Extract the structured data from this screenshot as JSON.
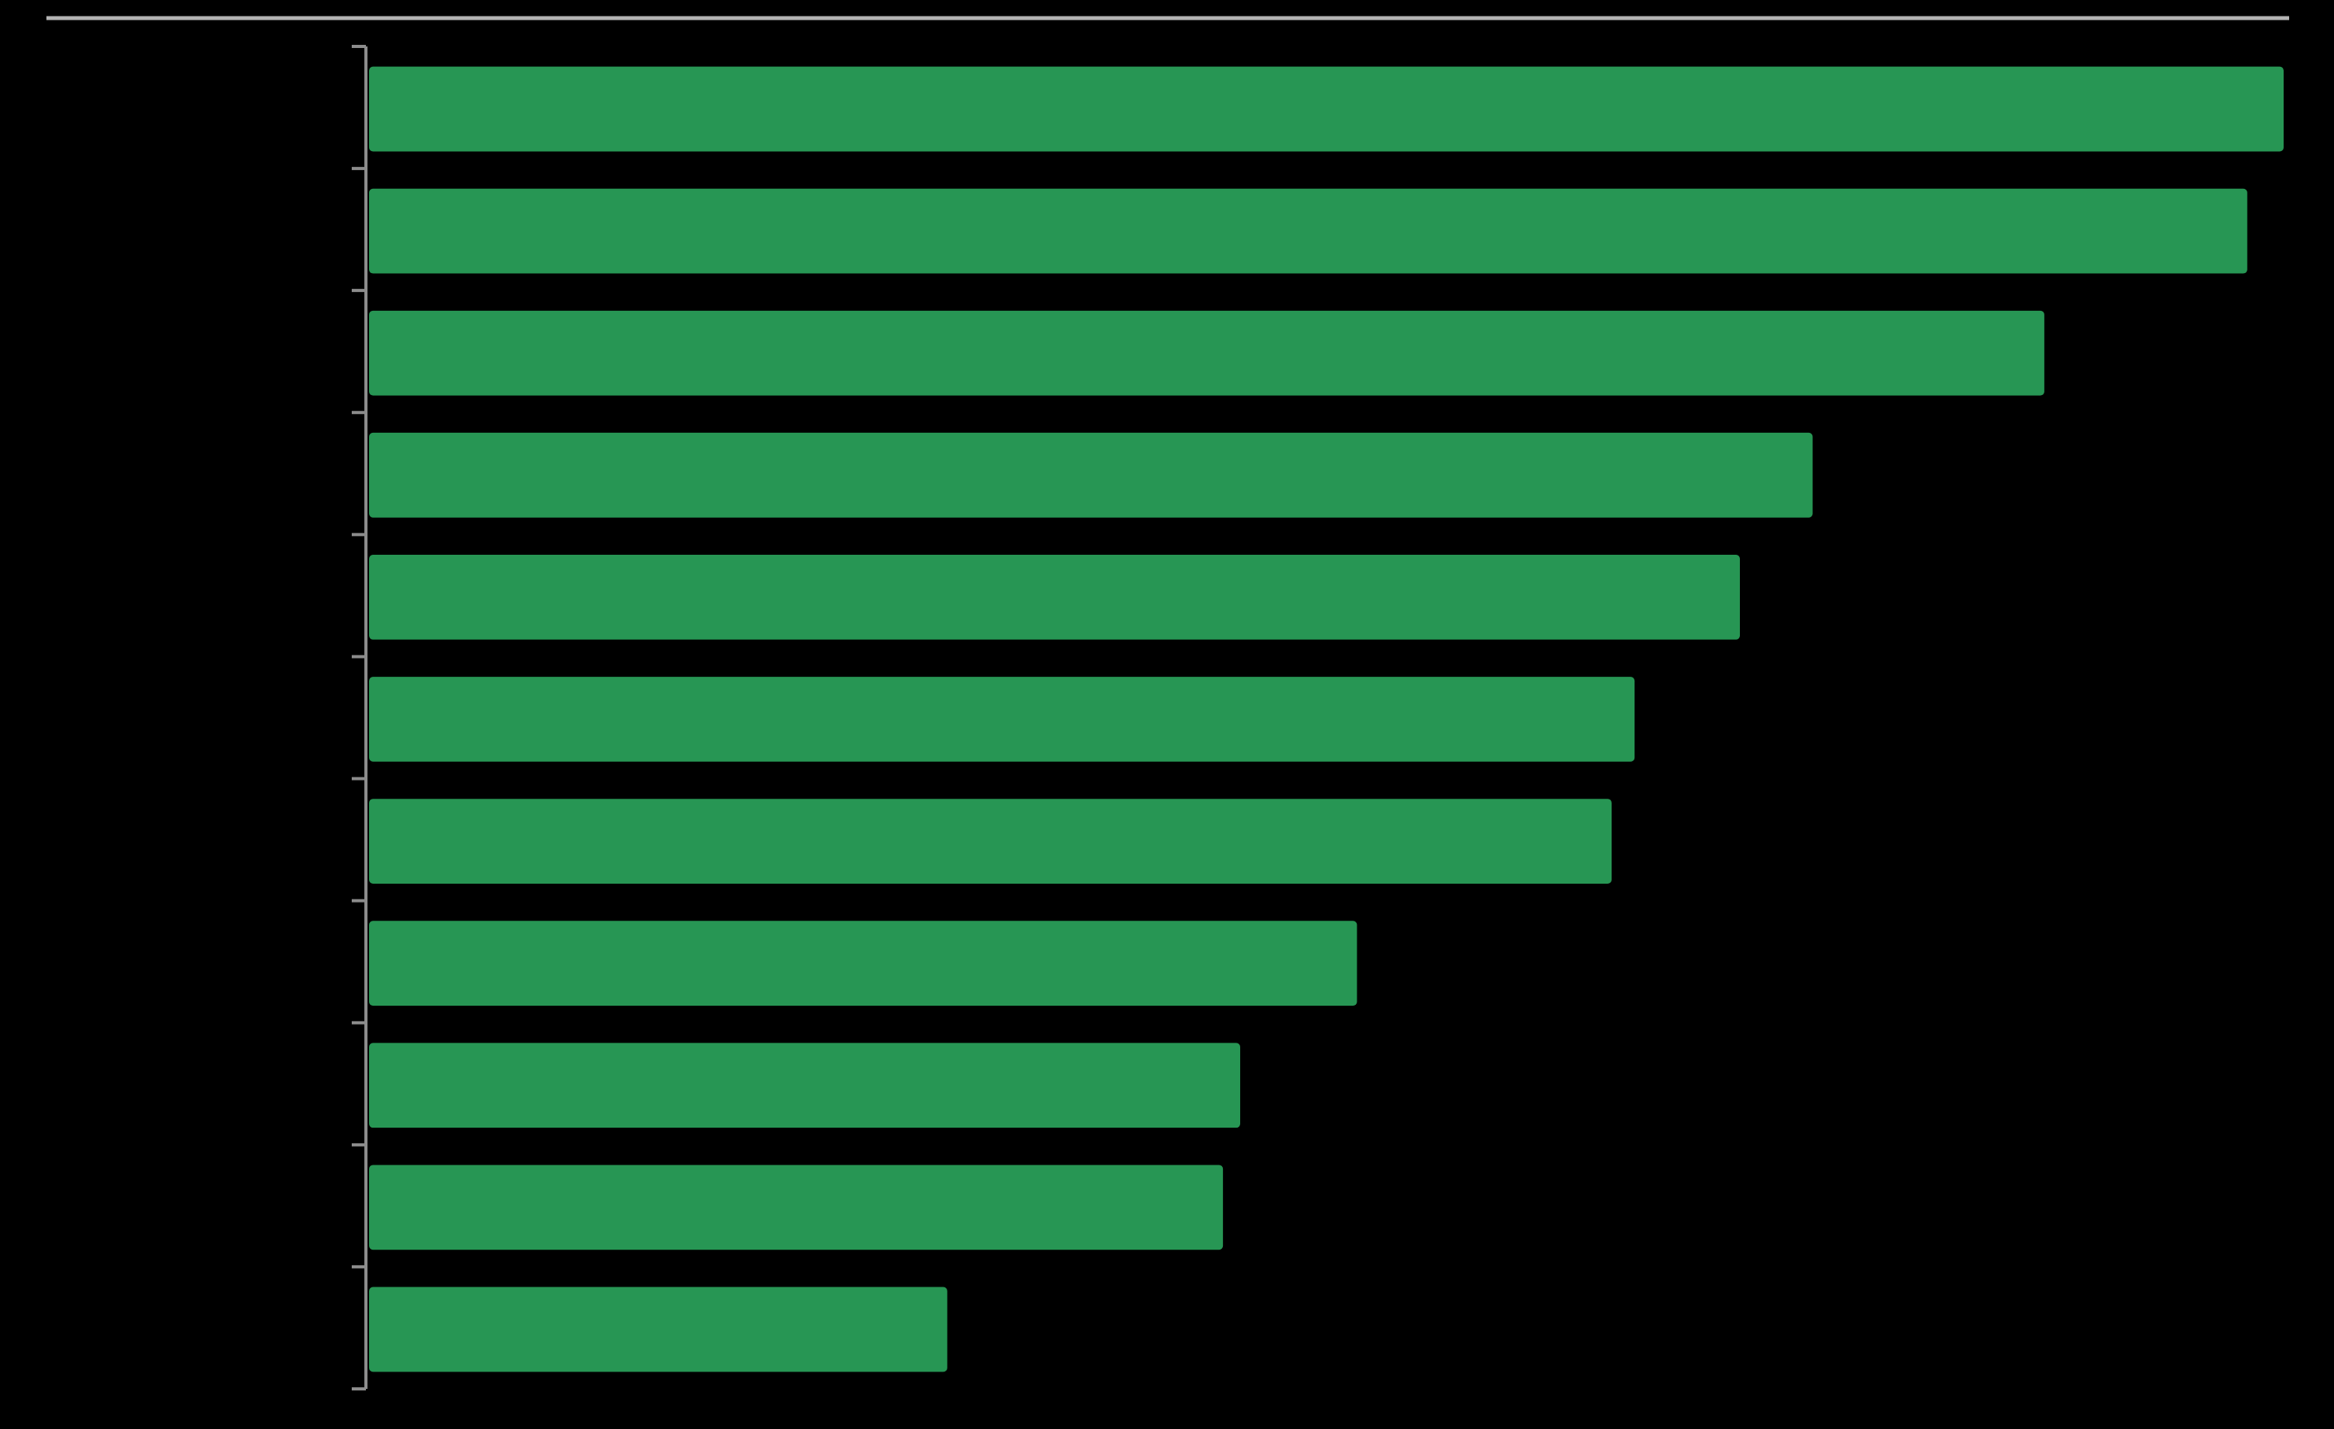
{
  "chart_data": {
    "type": "bar",
    "orientation": "horizontal",
    "color": "#279654",
    "values": [
      100,
      98.1,
      87.5,
      75.4,
      71.6,
      66.1,
      64.9,
      51.6,
      45.5,
      44.6,
      30.2
    ],
    "xlim": [
      0,
      100
    ]
  }
}
